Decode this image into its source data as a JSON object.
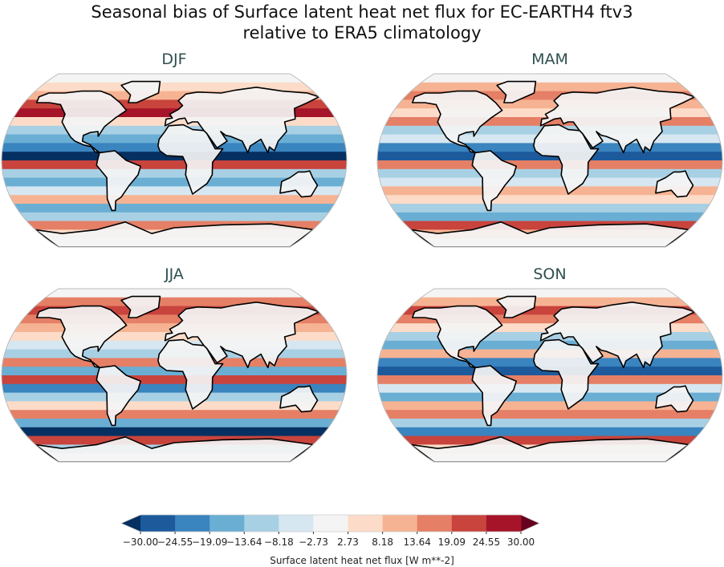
{
  "chart_data": {
    "type": "heatmap",
    "title": [
      "Seasonal bias of Surface latent heat net flux for EC-EARTH4 ftv3",
      "relative to ERA5 climatology"
    ],
    "panels": [
      {
        "title": "DJF"
      },
      {
        "title": "MAM"
      },
      {
        "title": "JJA"
      },
      {
        "title": "SON"
      }
    ],
    "colorbar": {
      "label": "Surface latent heat net flux [W m**-2]",
      "ticks": [
        "−30.00",
        "−24.55",
        "−19.09",
        "−13.64",
        "−8.18",
        "−2.73",
        "2.73",
        "8.18",
        "13.64",
        "19.09",
        "24.55",
        "30.00"
      ],
      "levels": [
        -30.0,
        -24.55,
        -19.09,
        -13.64,
        -8.18,
        -2.73,
        2.73,
        8.18,
        13.64,
        19.09,
        24.55,
        30.0
      ],
      "range": [
        -30,
        30
      ],
      "extend": "both",
      "colors": [
        "#1c5a9c",
        "#3a84bf",
        "#6aaed4",
        "#a8d0e4",
        "#d6e7f1",
        "#f4f4f4",
        "#fcdcc8",
        "#f6b393",
        "#e57f66",
        "#c8443d",
        "#a51429"
      ],
      "under_color": "#053061",
      "over_color": "#67001f",
      "colormap": "RdBu_r"
    }
  }
}
